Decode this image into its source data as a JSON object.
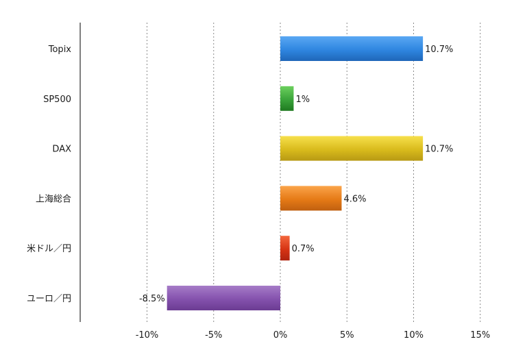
{
  "chart_data": {
    "type": "bar",
    "orientation": "horizontal",
    "categories": [
      "Topix",
      "SP500",
      "DAX",
      "上海総合",
      "米ドル／円",
      "ユーロ／円"
    ],
    "values": [
      10.7,
      1.0,
      10.7,
      4.6,
      0.7,
      -8.5
    ],
    "data_labels": [
      "10.7%",
      "1%",
      "10.7%",
      "4.6%",
      "0.7%",
      "-8.5%"
    ],
    "bar_colors": [
      "#2f86e0",
      "#3aa33a",
      "#d9bb1c",
      "#e57a16",
      "#d63414",
      "#8451ad"
    ],
    "bar_colors_light": [
      "#5aa8f4",
      "#6cd05e",
      "#f7e04c",
      "#fba44a",
      "#f4683d",
      "#a67cc8"
    ],
    "bar_colors_dark": [
      "#1f66b8",
      "#1f7a20",
      "#b89a14",
      "#c06010",
      "#b02310",
      "#6b3c92"
    ],
    "x_ticks": [
      -10,
      -5,
      0,
      5,
      10,
      15
    ],
    "x_tick_labels": [
      "-10%",
      "-5%",
      "0%",
      "5%",
      "10%",
      "15%"
    ],
    "xlim": [
      -15,
      15
    ],
    "grid": true,
    "legend": "none",
    "title": "",
    "xlabel": "",
    "ylabel": ""
  }
}
